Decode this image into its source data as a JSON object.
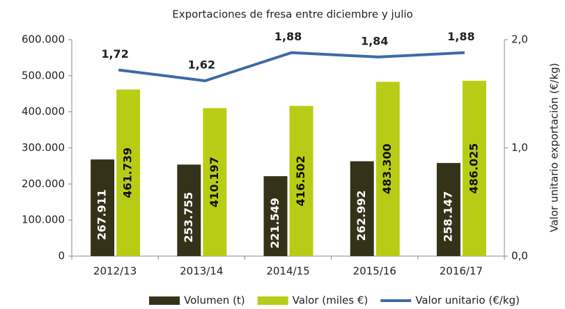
{
  "chart_data": {
    "type": "bar",
    "title": "Exportaciones de fresa entre diciembre y julio",
    "y2_label": "Valor unitario exportación (€/kg)",
    "categories": [
      "2012/13",
      "2013/14",
      "2014/15",
      "2015/16",
      "2016/17"
    ],
    "series": [
      {
        "name": "Volumen (t)",
        "type": "bar",
        "color": "#35321a",
        "label_color": "#ffffff",
        "values": [
          267911,
          253755,
          221549,
          262992,
          258147
        ],
        "value_labels": [
          "267.911",
          "253.755",
          "221.549",
          "262.992",
          "258.147"
        ]
      },
      {
        "name": "Valor (miles €)",
        "type": "bar",
        "color": "#b8cc16",
        "label_color": "#111111",
        "values": [
          461739,
          410197,
          416502,
          483300,
          486025
        ],
        "value_labels": [
          "461.739",
          "410.197",
          "416.502",
          "483.300",
          "486.025"
        ]
      },
      {
        "name": "Valor unitario (€/kg)",
        "type": "line",
        "axis": "y2",
        "color": "#3d6aa8",
        "label_color": "#111111",
        "values": [
          1.72,
          1.62,
          1.88,
          1.84,
          1.88
        ],
        "value_labels": [
          "1,72",
          "1,62",
          "1,88",
          "1,84",
          "1,88"
        ]
      }
    ],
    "ylim": [
      0,
      600000
    ],
    "yticks": [
      0,
      {
        "value": 100000,
        "label": "100.000"
      },
      {
        "value": 200000,
        "label": "200.000"
      },
      {
        "value": 300000,
        "label": "300.000"
      },
      {
        "value": 400000,
        "label": "400.000"
      },
      {
        "value": 500000,
        "label": "500.000"
      },
      {
        "value": 600000,
        "label": "600.000"
      }
    ],
    "y2lim": [
      0,
      2
    ],
    "y2ticks": [
      {
        "value": 0,
        "label": "0,0"
      },
      {
        "value": 1,
        "label": "1,0"
      },
      {
        "value": 2,
        "label": "2,0"
      }
    ],
    "grid": false,
    "legend": "bottom"
  }
}
